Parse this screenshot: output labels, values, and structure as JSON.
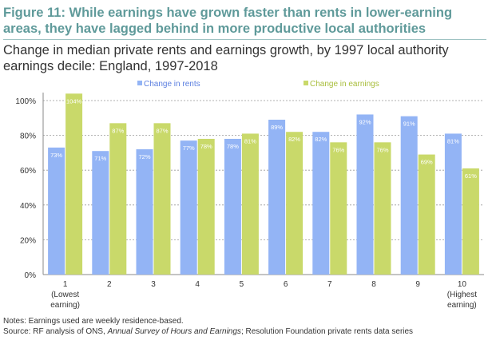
{
  "title": "Figure 11: While earnings have grown faster than rents in lower-earning areas, they have lagged behind in more productive local authorities",
  "subtitle": "Change in median private rents and earnings growth, by 1997 local authority earnings decile: England, 1997-2018",
  "notes": "Notes: Earnings used are weekly residence-based.",
  "source_prefix": "Source: RF analysis of ONS, ",
  "source_italic": "Annual Survey of Hours and Earnings",
  "source_suffix": "; Resolution Foundation private rents data series",
  "chart_data": {
    "type": "bar",
    "categories": [
      "1\n(Lowest\nearning)",
      "2",
      "3",
      "4",
      "5",
      "6",
      "7",
      "8",
      "9",
      "10\n(Highest\nearning)"
    ],
    "series": [
      {
        "name": "Change in rents",
        "color": "#93b4f5",
        "values": [
          73,
          71,
          72,
          77,
          78,
          89,
          82,
          92,
          91,
          81
        ]
      },
      {
        "name": "Change in earnings",
        "color": "#c9d96a",
        "values": [
          104,
          87,
          87,
          78,
          81,
          82,
          76,
          76,
          69,
          61
        ]
      }
    ],
    "ylim": [
      0,
      100
    ],
    "yticks": [
      "0%",
      "20%",
      "40%",
      "60%",
      "80%",
      "100%"
    ],
    "ytick_values": [
      0,
      20,
      40,
      60,
      80,
      100
    ],
    "grid": true,
    "legend": "top",
    "data_label_suffix": "%"
  }
}
